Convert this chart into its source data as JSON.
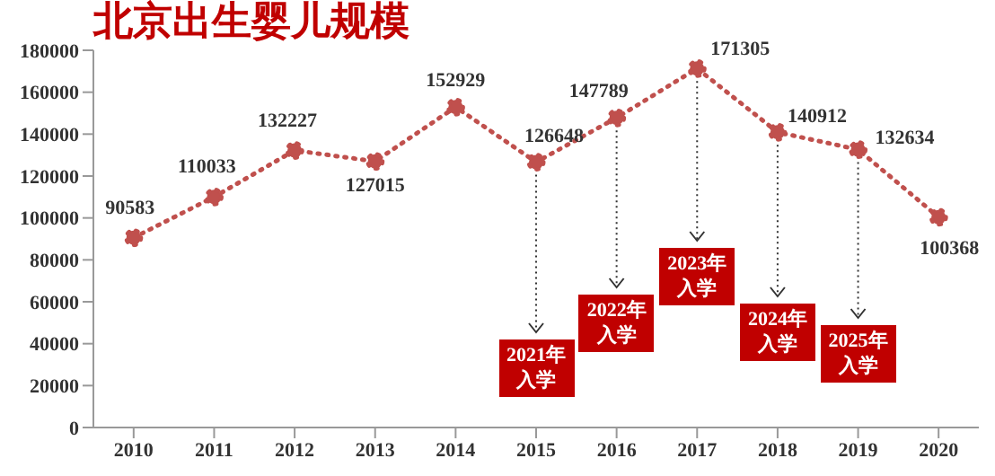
{
  "chart_data": {
    "type": "line",
    "title": "北京出生婴儿规模",
    "categories": [
      "2010",
      "2011",
      "2012",
      "2013",
      "2014",
      "2015",
      "2016",
      "2017",
      "2018",
      "2019",
      "2020"
    ],
    "values": [
      90583,
      110033,
      132227,
      127015,
      152929,
      126648,
      147789,
      171305,
      140912,
      132634,
      100368
    ],
    "color": "#c0504d",
    "marker": "circle",
    "line_style": "dotted",
    "data_labels": true,
    "ylim": [
      0,
      180000
    ],
    "yticks": [
      0,
      20000,
      40000,
      60000,
      80000,
      100000,
      120000,
      140000,
      160000,
      180000
    ],
    "annotations": [
      {
        "text": "2021年入学",
        "x": "2015",
        "y": 126648
      },
      {
        "text": "2022年入学",
        "x": "2016",
        "y": 147789
      },
      {
        "text": "2023年入学",
        "x": "2017",
        "y": 171305
      },
      {
        "text": "2024年入学",
        "x": "2018",
        "y": 140912
      },
      {
        "text": "2025年入学",
        "x": "2019",
        "y": 132634
      }
    ]
  }
}
